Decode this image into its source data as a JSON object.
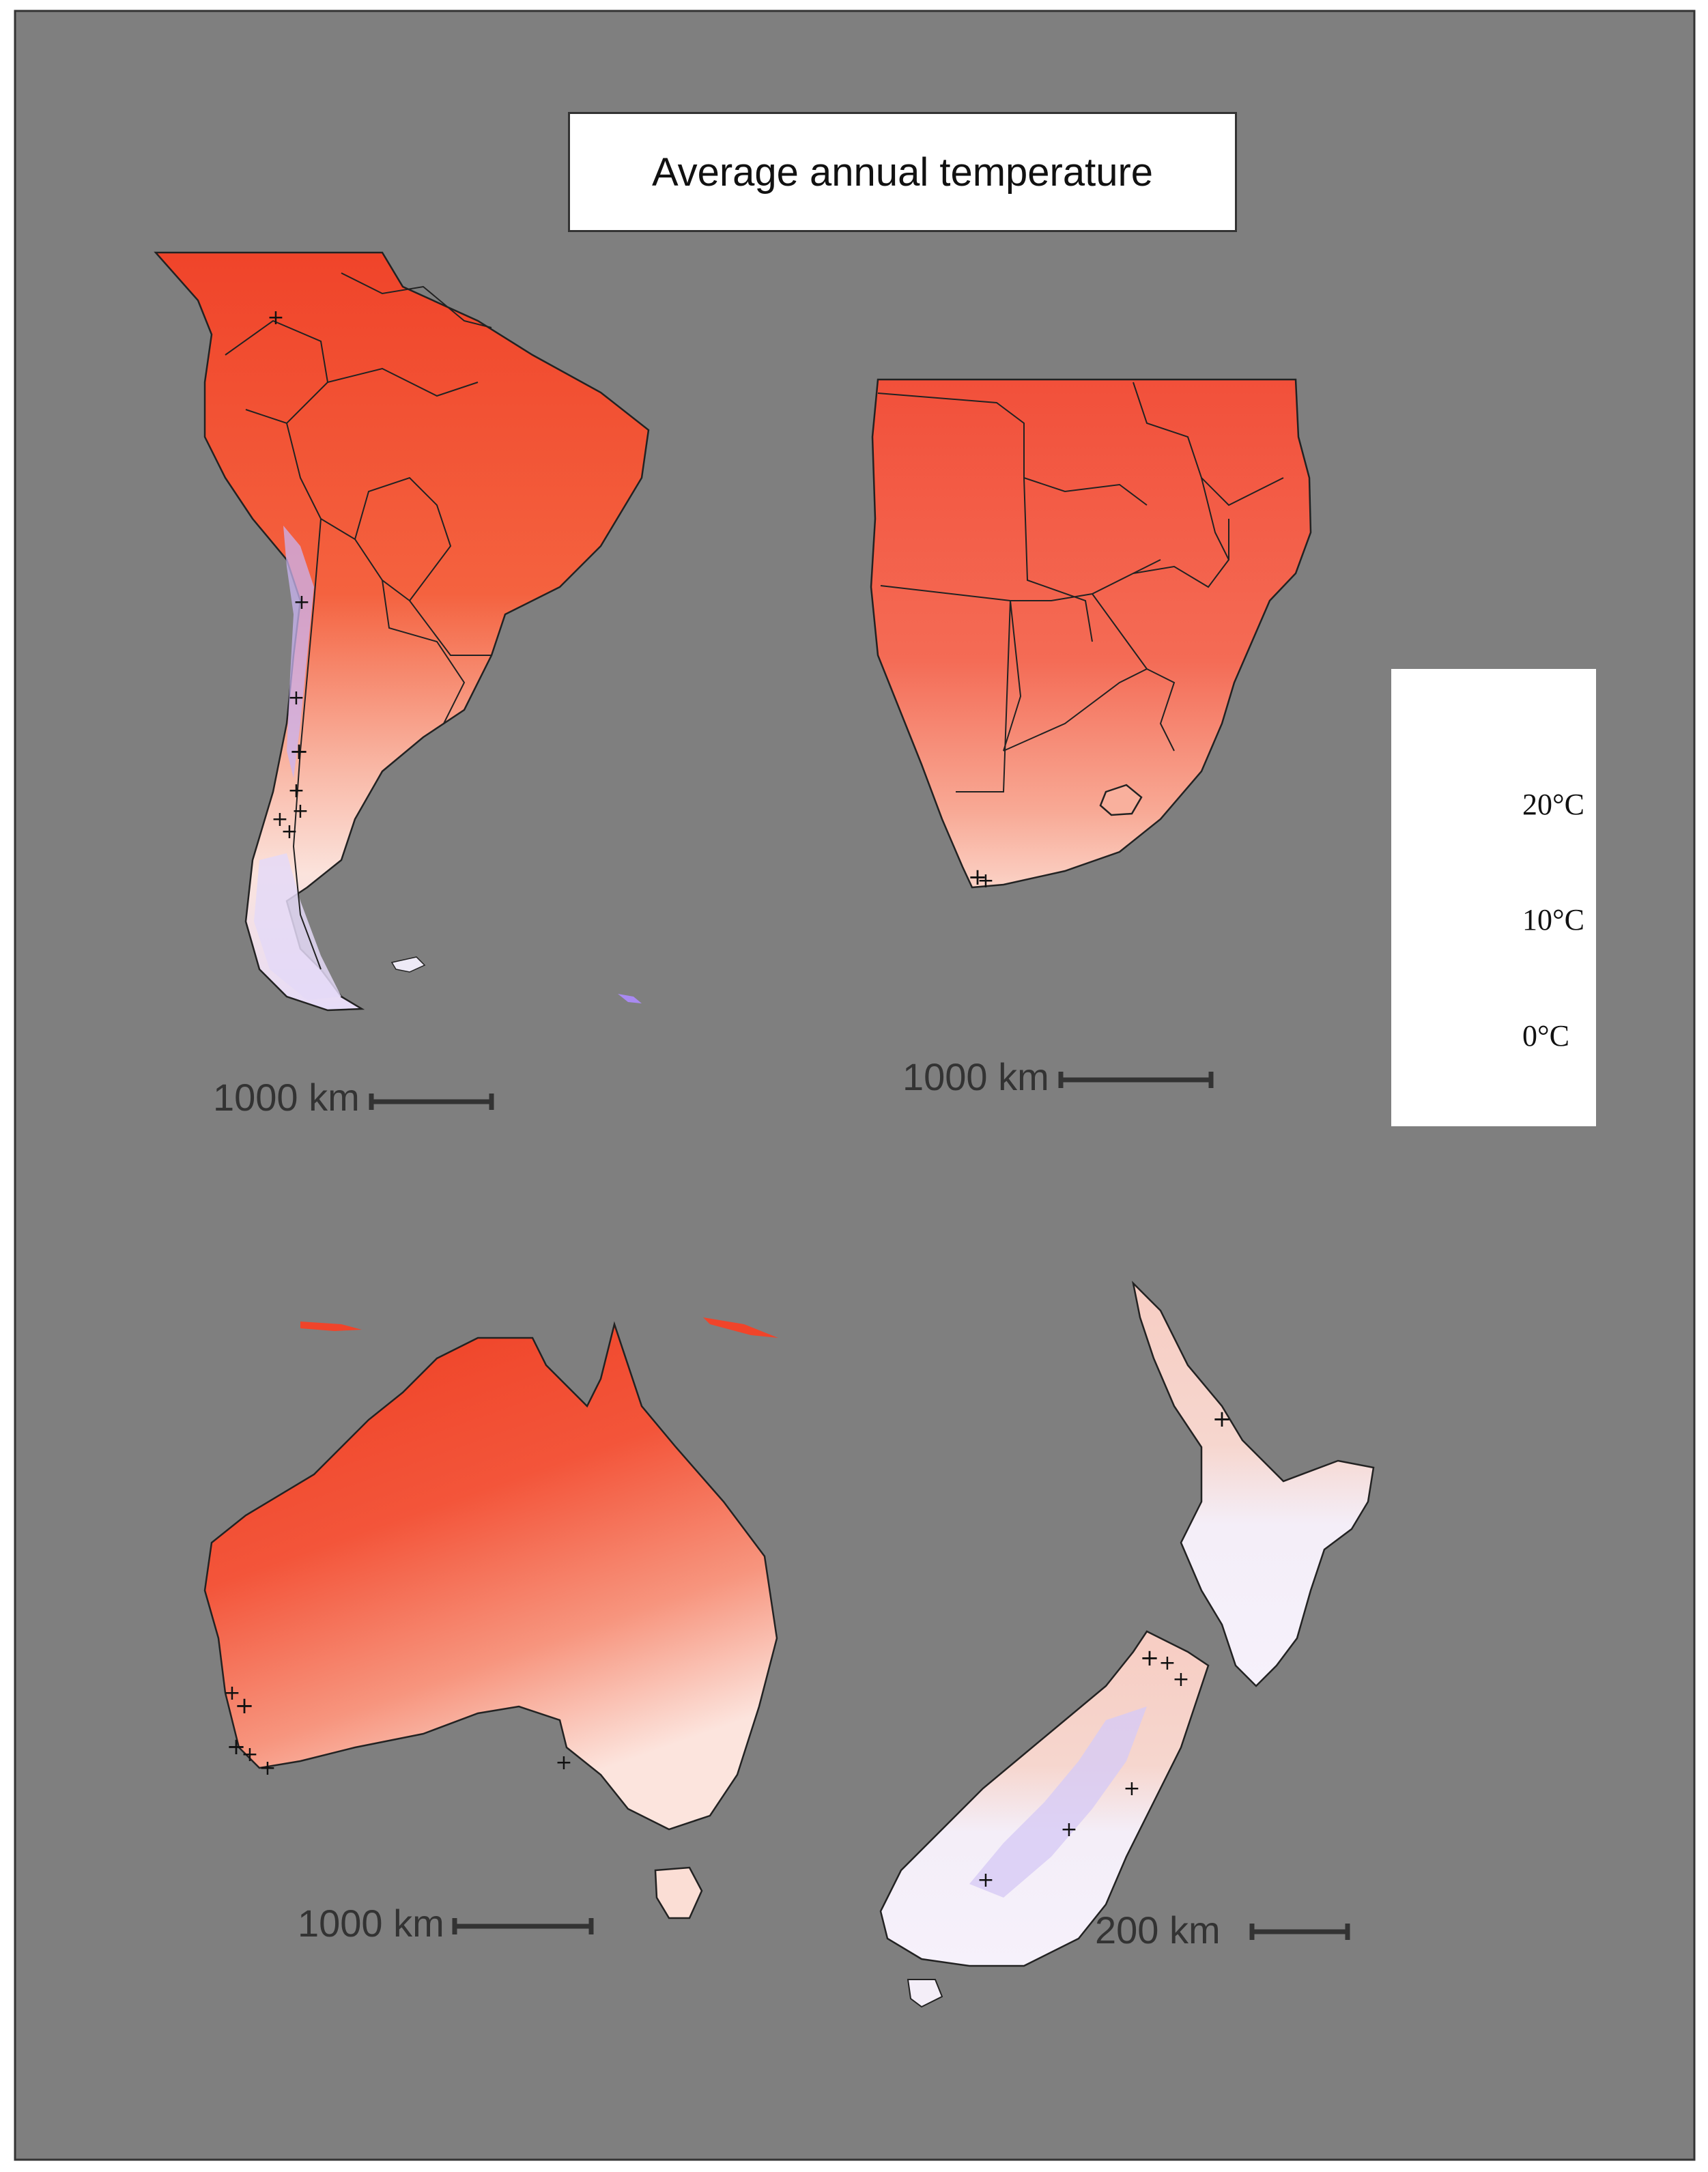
{
  "title": "Average annual temperature",
  "colors": {
    "background": "#7f7f7f",
    "warm": "#f0442a",
    "mid_warm": "#f77d66",
    "neutral": "#ffffff",
    "cold": "#8d5cf0",
    "border_lines": "#222222"
  },
  "maps": [
    {
      "region": "South America",
      "scale_label": "1000 km"
    },
    {
      "region": "Southern Africa",
      "scale_label": "1000 km"
    },
    {
      "region": "Australia",
      "scale_label": "1000 km"
    },
    {
      "region": "New Zealand",
      "scale_label": "200 km"
    }
  ],
  "legend": {
    "ticks": [
      {
        "label": "20°C",
        "value": 20
      },
      {
        "label": "10°C",
        "value": 10
      },
      {
        "label": "0°C",
        "value": 0
      }
    ],
    "range": [
      -4.5,
      27.5
    ]
  },
  "marker_symbol": "+"
}
